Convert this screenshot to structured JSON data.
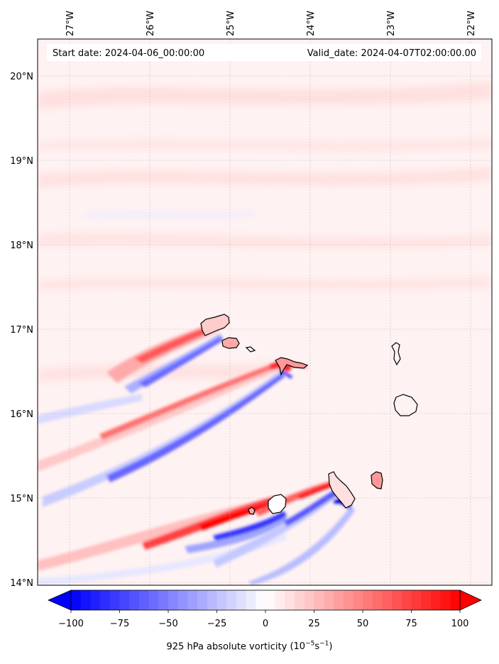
{
  "map": {
    "start_date": "Start date: 2024-04-06_00:00:00",
    "valid_date": "Valid_date: 2024-04-07T02:00:00.00",
    "lon_ticks": [
      "27°W",
      "26°W",
      "25°W",
      "24°W",
      "23°W",
      "22°W"
    ],
    "lat_ticks": [
      "20°N",
      "19°N",
      "18°N",
      "17°N",
      "16°N",
      "15°N",
      "14°N"
    ],
    "variable": "925 hPa absolute vorticity",
    "units_base": "(10",
    "units_exp1": "−5",
    "units_mid": "s",
    "units_exp2": "−1",
    "units_close": ")",
    "islands": [
      "Santo Antão",
      "São Vicente",
      "Santa Luzia",
      "São Nicolau",
      "Sal",
      "Boa Vista",
      "Maio",
      "Santiago",
      "Fogo",
      "Brava"
    ]
  },
  "colorbar": {
    "min": -100,
    "max": 100,
    "step": 5,
    "ticks": [
      "−100",
      "−75",
      "−50",
      "−25",
      "0",
      "25",
      "50",
      "75",
      "100"
    ],
    "tick_values": [
      -100,
      -75,
      -50,
      -25,
      0,
      25,
      50,
      75,
      100
    ],
    "colormap": "bwr",
    "low_color": "#0000ff",
    "mid_color": "#ffffff",
    "high_color": "#ff0000"
  },
  "chart_data": {
    "type": "heatmap",
    "title": "",
    "xlabel": "",
    "ylabel": "",
    "xlim_deg_w": [
      27.4,
      21.75
    ],
    "ylim_deg_n": [
      13.95,
      20.45
    ],
    "clim": [
      -100,
      100
    ]
  }
}
